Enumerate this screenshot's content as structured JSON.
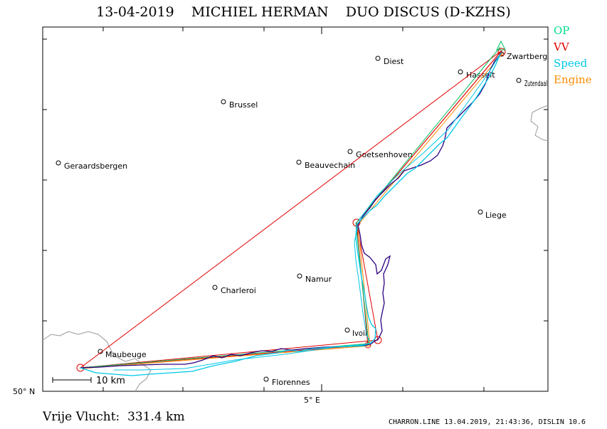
{
  "title": "13-04-2019    MICHIEL HERMAN    DUO DISCUS (D-KZHS)",
  "legend": [
    {
      "label": "OP",
      "color": "#00e08a"
    },
    {
      "label": "VV",
      "color": "#e00000"
    },
    {
      "label": "Speed",
      "color": "#00c8e8"
    },
    {
      "label": "Engine",
      "color": "#ff8c00"
    }
  ],
  "axes": {
    "lat_label": "50° N",
    "lon_label": "5° E"
  },
  "scale_label": "10 km",
  "places": [
    {
      "name": "Diest"
    },
    {
      "name": "Zwartberg"
    },
    {
      "name": "Hasselt"
    },
    {
      "name": "Zutendaal"
    },
    {
      "name": "Brussel"
    },
    {
      "name": "Goetsenhoven"
    },
    {
      "name": "Geraardsbergen"
    },
    {
      "name": "Beauvechain"
    },
    {
      "name": "Liege"
    },
    {
      "name": "Namur"
    },
    {
      "name": "Charleroi"
    },
    {
      "name": "Ivoir"
    },
    {
      "name": "Maubeuge"
    },
    {
      "name": "Florennes"
    }
  ],
  "distance_text": "Vrije Vlucht:  331.4 km",
  "footer_text": "CHARRON.LINE 13.04.2019, 21:43:36, DISLIN 10.6",
  "colors": {
    "track": "#2a0080",
    "border": "#999999"
  }
}
